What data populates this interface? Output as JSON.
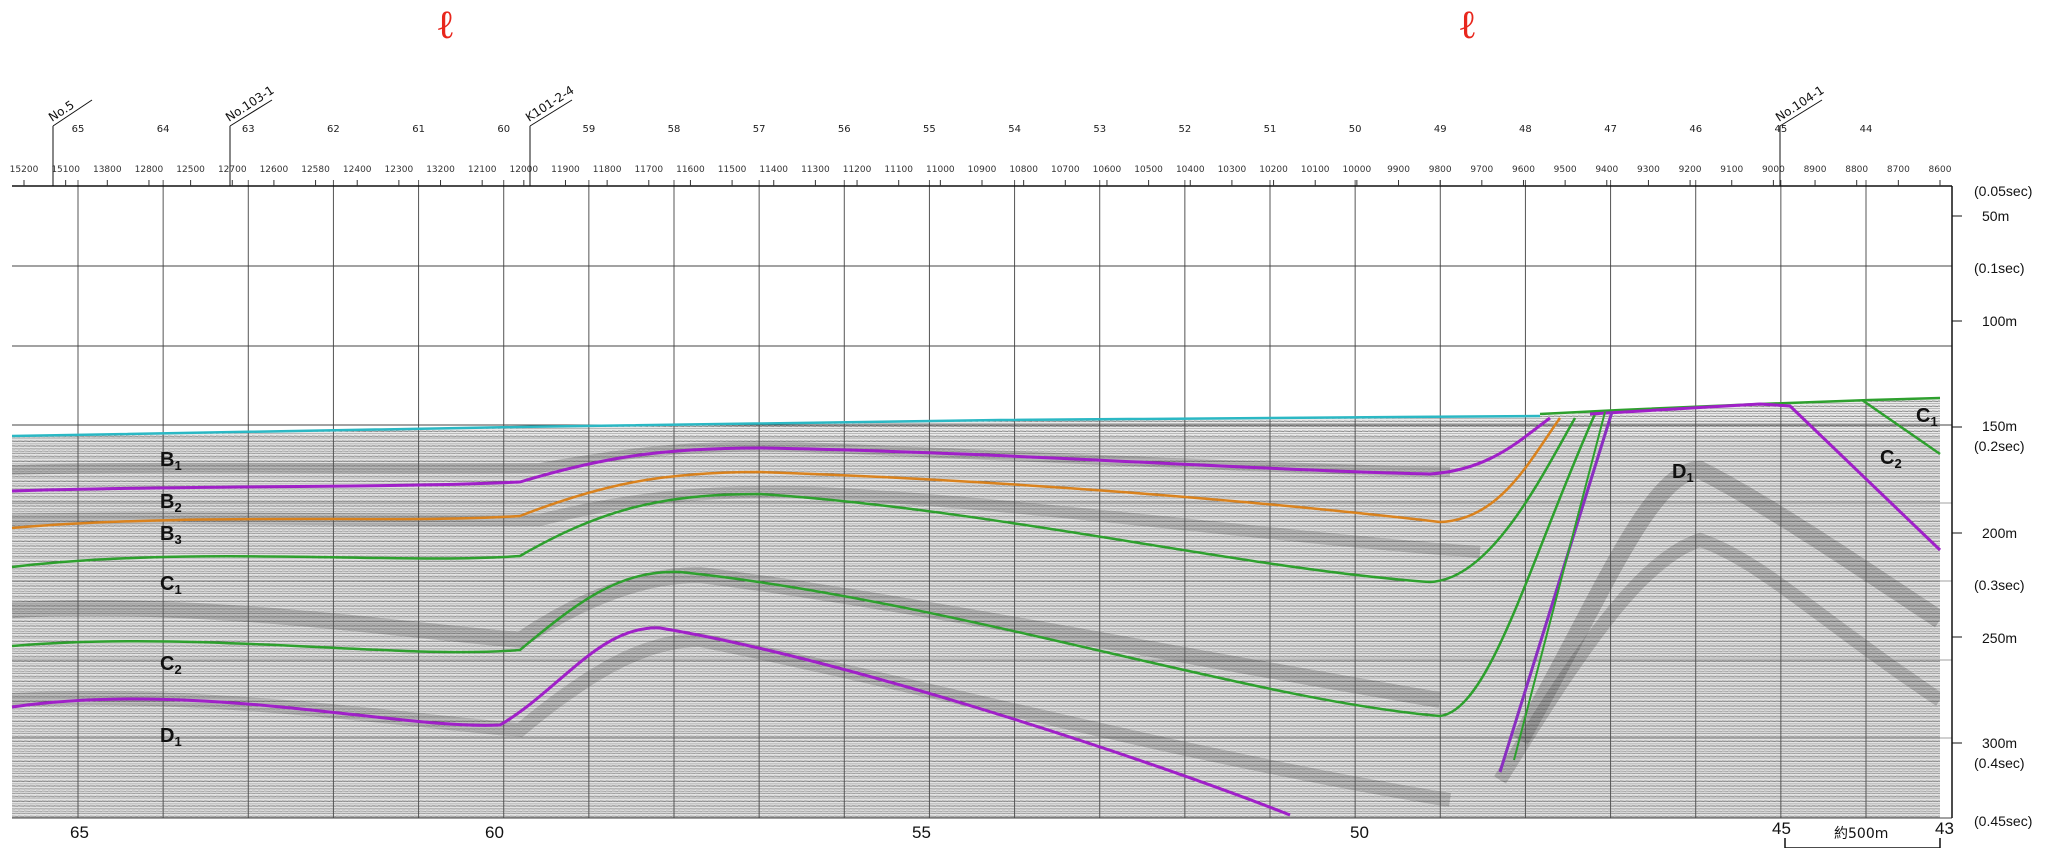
{
  "markers": [
    {
      "symbol": "ℓ",
      "color": "#e8261c"
    },
    {
      "symbol": "ℓ",
      "color": "#e8261c"
    }
  ],
  "wells": [
    "No.5",
    "No.103-1",
    "K101-2-4",
    "No.104-1"
  ],
  "station_labels": [
    "65",
    "64",
    "63",
    "62",
    "61",
    "60",
    "59",
    "58",
    "57",
    "56",
    "55",
    "54",
    "53",
    "52",
    "51",
    "50",
    "49",
    "48",
    "47",
    "46",
    "45",
    "44"
  ],
  "shot_labels": [
    "15200",
    "15100",
    "13800",
    "12800",
    "12500",
    "12700",
    "12600",
    "12580",
    "12400",
    "12300",
    "13200",
    "12100",
    "12000",
    "11900",
    "11800",
    "11700",
    "11600",
    "11500",
    "11400",
    "11300",
    "11200",
    "11100",
    "11000",
    "10900",
    "10800",
    "10700",
    "10600",
    "10500",
    "10400",
    "10300",
    "10200",
    "10100",
    "10000",
    "9900",
    "9800",
    "9700",
    "9600",
    "9500",
    "9400",
    "9300",
    "9200",
    "9100",
    "9000",
    "8900",
    "8800",
    "8700",
    "8600"
  ],
  "bottom_axis": [
    "65",
    "60",
    "55",
    "50",
    "45",
    "43"
  ],
  "depth_labels": [
    {
      "text": "(0.05sec)"
    },
    {
      "text": "50m"
    },
    {
      "text": "(0.1sec)"
    },
    {
      "text": "100m"
    },
    {
      "text": "150m"
    },
    {
      "text": "(0.2sec)"
    },
    {
      "text": "200m"
    },
    {
      "text": "(0.3sec)"
    },
    {
      "text": "250m"
    },
    {
      "text": "300m"
    },
    {
      "text": "(0.4sec)"
    },
    {
      "text": "(0.45sec)"
    }
  ],
  "layers": [
    {
      "main": "B",
      "sub": "1"
    },
    {
      "main": "B",
      "sub": "2"
    },
    {
      "main": "B",
      "sub": "3"
    },
    {
      "main": "C",
      "sub": "1"
    },
    {
      "main": "C",
      "sub": "2"
    },
    {
      "main": "D",
      "sub": "1"
    },
    {
      "main": "D",
      "sub": "1"
    },
    {
      "main": "C",
      "sub": "1"
    },
    {
      "main": "C",
      "sub": "2"
    }
  ],
  "scale_bar": {
    "label": "約500m"
  },
  "horizon_colors": {
    "seafloor": "#2bb8c4",
    "B1": "#a020c8",
    "B2": "#d9821e",
    "B3": "#2ea02e",
    "C2_top": "#2ea02e",
    "D1": "#a020c8",
    "fault": "#8a2fc0"
  }
}
